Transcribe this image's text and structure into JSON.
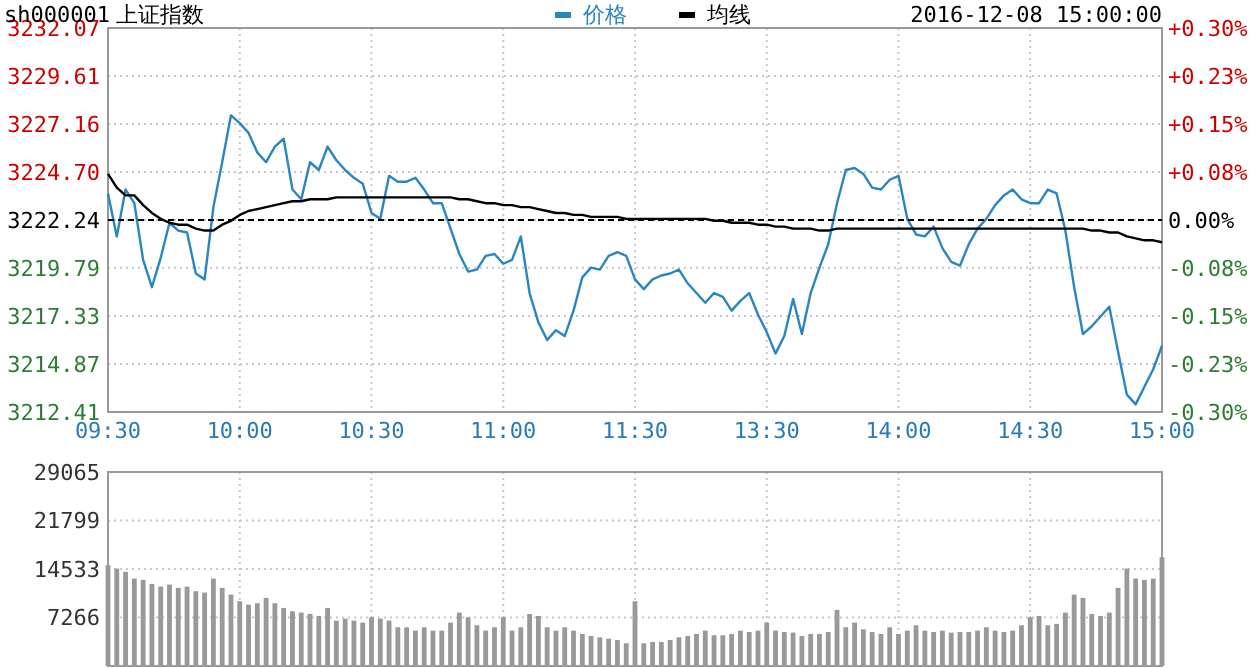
{
  "chart_data": [
    {
      "type": "line",
      "title": "上证指数",
      "annotations": [
        "sh000001",
        "2016-12-08 15:00:00"
      ],
      "legend": "top",
      "grid": true,
      "line_style": "solid",
      "marker": "none",
      "categories": [
        "09:30",
        null,
        null,
        null,
        null,
        null,
        null,
        null,
        null,
        null,
        null,
        null,
        null,
        null,
        null,
        "10:00",
        null,
        null,
        null,
        null,
        null,
        null,
        null,
        null,
        null,
        null,
        null,
        null,
        null,
        null,
        "10:30",
        null,
        null,
        null,
        null,
        null,
        null,
        null,
        null,
        null,
        null,
        null,
        null,
        null,
        null,
        "11:00",
        null,
        null,
        null,
        null,
        null,
        null,
        null,
        null,
        null,
        null,
        null,
        null,
        null,
        null,
        "11:30",
        null,
        null,
        null,
        null,
        null,
        null,
        null,
        null,
        null,
        null,
        null,
        null,
        null,
        null,
        "13:30",
        null,
        null,
        null,
        null,
        null,
        null,
        null,
        null,
        null,
        null,
        null,
        null,
        null,
        null,
        "14:00",
        null,
        null,
        null,
        null,
        null,
        null,
        null,
        null,
        null,
        null,
        null,
        null,
        null,
        null,
        "14:30",
        null,
        null,
        null,
        null,
        null,
        null,
        null,
        null,
        null,
        null,
        null,
        null,
        null,
        null,
        "15:00"
      ],
      "ylim": [
        3212.41,
        3232.07
      ],
      "yticks": [
        3212.41,
        3214.87,
        3217.33,
        3219.79,
        3222.24,
        {
          "value": 3224.7,
          "label": "3224.70"
        },
        3227.16,
        3229.61,
        3232.07
      ],
      "y2lim": [
        -0.3,
        0.3
      ],
      "y2ticks": [
        {
          "value": -0.3,
          "label": "-0.30%"
        },
        {
          "value": -0.225,
          "label": "-0.23%"
        },
        {
          "value": -0.15,
          "label": "-0.15%"
        },
        {
          "value": -0.075,
          "label": "-0.08%"
        },
        {
          "value": 0,
          "label": "0.00%"
        },
        {
          "value": 0.075,
          "label": "+0.08%"
        },
        {
          "value": 0.15,
          "label": "+0.15%"
        },
        {
          "value": 0.225,
          "label": "+0.23%"
        },
        {
          "value": 0.3,
          "label": "+0.30%"
        }
      ],
      "ref_lines": [
        {
          "axis": "y",
          "value": 3222.24,
          "color": "#000000",
          "line_style": "dashed"
        }
      ],
      "series": [
        {
          "name": "价格",
          "color": "#2a86c0",
          "values": [
            3223.6,
            3221.4,
            3223.8,
            3223.1,
            3220.2,
            3218.8,
            3220.3,
            3222.1,
            3221.7,
            3221.6,
            3219.5,
            3219.2,
            3222.9,
            3225.2,
            3227.6,
            3227.2,
            3226.7,
            3225.7,
            3225.2,
            3226.0,
            3226.4,
            3223.8,
            3223.3,
            3225.2,
            3224.8,
            3226.0,
            3225.3,
            3224.8,
            3224.4,
            3224.1,
            3222.6,
            3222.3,
            3224.5,
            3224.2,
            3224.2,
            3224.4,
            3223.8,
            3223.1,
            3223.1,
            3221.8,
            3220.5,
            3219.6,
            3219.7,
            3220.4,
            3220.5,
            3220.0,
            3220.2,
            3221.4,
            3218.5,
            3217.0,
            3216.1,
            3216.6,
            3216.3,
            3217.6,
            3219.3,
            3219.8,
            3219.7,
            3220.4,
            3220.6,
            3220.4,
            3219.2,
            3218.7,
            3219.2,
            3219.4,
            3219.5,
            3219.7,
            3219.0,
            3218.5,
            3218.0,
            3218.5,
            3218.3,
            3217.6,
            3218.1,
            3218.5,
            3217.4,
            3216.5,
            3215.4,
            3216.3,
            3218.2,
            3216.4,
            3218.5,
            3219.8,
            3221.0,
            3223.1,
            3224.8,
            3224.9,
            3224.6,
            3223.9,
            3223.8,
            3224.3,
            3224.5,
            3222.3,
            3221.5,
            3221.4,
            3221.9,
            3220.8,
            3220.1,
            3219.9,
            3221.0,
            3221.8,
            3222.3,
            3223.0,
            3223.5,
            3223.8,
            3223.3,
            3223.1,
            3223.1,
            3223.8,
            3223.6,
            3221.7,
            3218.8,
            3216.4,
            3216.8,
            3217.3,
            3217.8,
            3215.5,
            3213.3,
            3212.8,
            3213.7,
            3214.6,
            3215.8
          ]
        },
        {
          "name": "均线",
          "color": "#000000",
          "values": [
            3224.6,
            3223.9,
            3223.5,
            3223.5,
            3223.0,
            3222.6,
            3222.3,
            3222.1,
            3222.0,
            3222.0,
            3221.8,
            3221.7,
            3221.7,
            3222.0,
            3222.2,
            3222.5,
            3222.7,
            3222.8,
            3222.9,
            3223.0,
            3223.1,
            3223.2,
            3223.2,
            3223.3,
            3223.3,
            3223.3,
            3223.4,
            3223.4,
            3223.4,
            3223.4,
            3223.4,
            3223.4,
            3223.4,
            3223.4,
            3223.4,
            3223.4,
            3223.4,
            3223.4,
            3223.4,
            3223.4,
            3223.3,
            3223.3,
            3223.2,
            3223.1,
            3223.1,
            3223.0,
            3223.0,
            3222.9,
            3222.9,
            3222.8,
            3222.7,
            3222.6,
            3222.6,
            3222.5,
            3222.5,
            3222.4,
            3222.4,
            3222.4,
            3222.4,
            3222.3,
            3222.3,
            3222.3,
            3222.3,
            3222.3,
            3222.3,
            3222.3,
            3222.3,
            3222.3,
            3222.3,
            3222.2,
            3222.2,
            3222.1,
            3222.1,
            3222.1,
            3222.0,
            3222.0,
            3221.9,
            3221.9,
            3221.8,
            3221.8,
            3221.8,
            3221.7,
            3221.7,
            3221.8,
            3221.8,
            3221.8,
            3221.8,
            3221.8,
            3221.8,
            3221.8,
            3221.8,
            3221.8,
            3221.8,
            3221.8,
            3221.8,
            3221.8,
            3221.8,
            3221.8,
            3221.8,
            3221.8,
            3221.8,
            3221.8,
            3221.8,
            3221.8,
            3221.8,
            3221.8,
            3221.8,
            3221.8,
            3221.8,
            3221.8,
            3221.8,
            3221.8,
            3221.7,
            3221.7,
            3221.6,
            3221.6,
            3221.4,
            3221.3,
            3221.2,
            3221.2,
            3221.1
          ]
        }
      ]
    },
    {
      "type": "bar",
      "grid": true,
      "tick_labels": "y",
      "ylim": [
        0,
        29065
      ],
      "yticks": [
        7266,
        14533,
        21799,
        29065
      ],
      "color": "#999999",
      "categories": [
        null,
        null,
        null,
        null,
        null,
        null,
        null,
        null,
        null,
        null,
        null,
        null,
        null,
        null,
        null,
        null,
        null,
        null,
        null,
        null,
        null,
        null,
        null,
        null,
        null,
        null,
        null,
        null,
        null,
        null,
        null,
        null,
        null,
        null,
        null,
        null,
        null,
        null,
        null,
        null,
        null,
        null,
        null,
        null,
        null,
        null,
        null,
        null,
        null,
        null,
        null,
        null,
        null,
        null,
        null,
        null,
        null,
        null,
        null,
        null,
        null,
        null,
        null,
        null,
        null,
        null,
        null,
        null,
        null,
        null,
        null,
        null,
        null,
        null,
        null,
        null,
        null,
        null,
        null,
        null,
        null,
        null,
        null,
        null,
        null,
        null,
        null,
        null,
        null,
        null,
        null,
        null,
        null,
        null,
        null,
        null,
        null,
        null,
        null,
        null,
        null,
        null,
        null,
        null,
        null,
        null,
        null,
        null,
        null,
        null,
        null,
        null,
        null,
        null,
        null,
        null,
        null,
        null,
        null,
        null,
        null
      ],
      "values": [
        15100,
        14600,
        14100,
        13100,
        12900,
        12300,
        11900,
        12200,
        11700,
        11900,
        11200,
        11000,
        13100,
        11700,
        10700,
        9700,
        9200,
        9400,
        10200,
        9400,
        8700,
        8200,
        8000,
        7800,
        7500,
        8700,
        6800,
        7100,
        6800,
        6500,
        7300,
        7100,
        6800,
        5800,
        5800,
        5300,
        5800,
        5300,
        5300,
        6500,
        8000,
        7300,
        6100,
        5300,
        5800,
        7300,
        5300,
        5800,
        7800,
        7500,
        5800,
        5300,
        5800,
        5300,
        4800,
        4500,
        4300,
        4100,
        3900,
        3400,
        9700,
        3400,
        3600,
        3600,
        3900,
        4300,
        4500,
        4800,
        5300,
        4600,
        4600,
        4800,
        5300,
        5100,
        5300,
        6500,
        5300,
        5100,
        5000,
        4500,
        4800,
        4800,
        5100,
        8400,
        5800,
        6500,
        5500,
        5100,
        4800,
        5800,
        4800,
        5300,
        6100,
        5300,
        5100,
        5300,
        5000,
        5100,
        5100,
        5300,
        5800,
        5300,
        5100,
        5300,
        6100,
        7300,
        7500,
        6100,
        6300,
        8000,
        10700,
        10200,
        7800,
        7500,
        8000,
        11700,
        14600,
        13100,
        12900,
        13100,
        16300
      ]
    }
  ]
}
